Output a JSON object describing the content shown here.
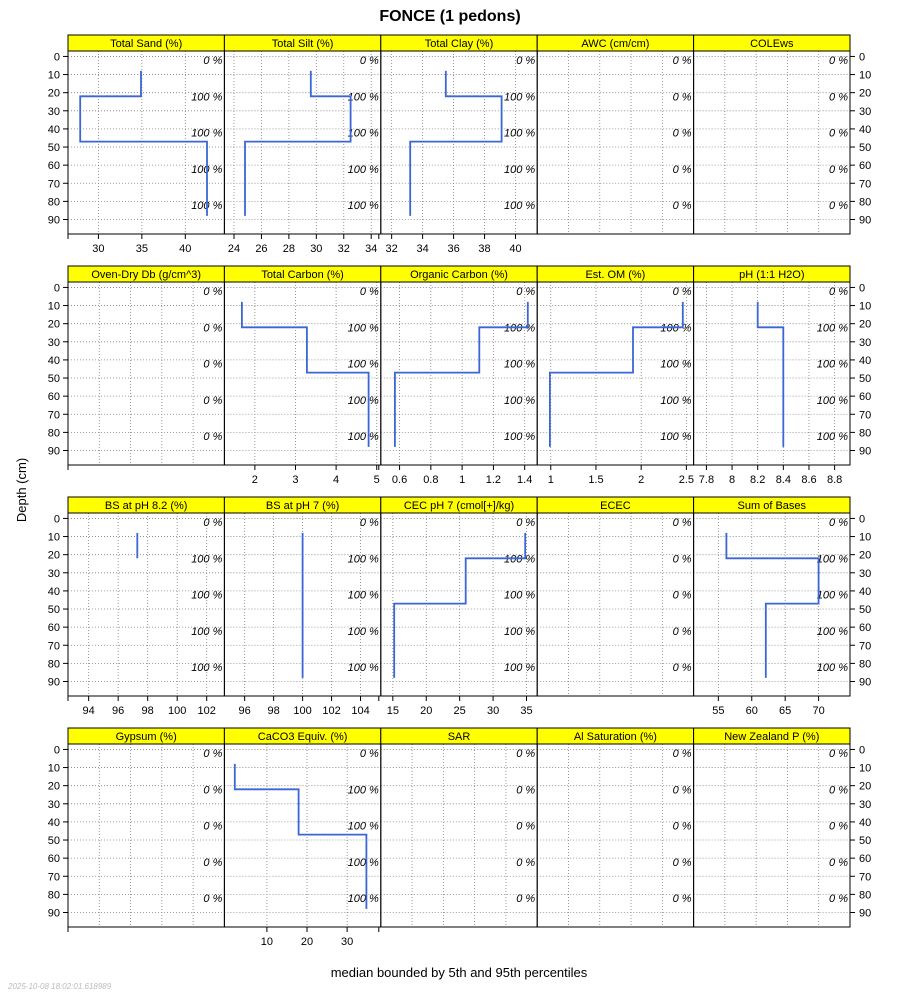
{
  "chart_data": {
    "type": "line",
    "title": "FONCE (1 pedons)",
    "ylabel": "Depth (cm)",
    "xlabel": "median bounded by 5th and 95th percentiles",
    "timestamp": "2025-10-08 18:02:01.618989",
    "y_ticks": [
      0,
      10,
      20,
      30,
      40,
      50,
      60,
      70,
      80,
      90
    ],
    "ylim": [
      -3,
      98
    ],
    "grid": true,
    "colors": {
      "strip": "#ffff00",
      "line": "#3a66d6",
      "grid": "#808080"
    },
    "pct_labels": [
      {
        "depth": 2,
        "text": "0 %"
      },
      {
        "depth": 22,
        "text": "100 %"
      },
      {
        "depth": 42,
        "text": "100 %"
      },
      {
        "depth": 62,
        "text": "100 %"
      },
      {
        "depth": 82,
        "text": "100 %"
      }
    ],
    "zero_pct_labels": [
      {
        "depth": 2,
        "text": "0 %"
      },
      {
        "depth": 22,
        "text": "0 %"
      },
      {
        "depth": 42,
        "text": "0 %"
      },
      {
        "depth": 62,
        "text": "0 %"
      },
      {
        "depth": 82,
        "text": "0 %"
      }
    ],
    "panels": [
      {
        "name": "Total Sand (%)",
        "xlim": [
          26.5,
          44.5
        ],
        "ticks": [
          30,
          35,
          40
        ],
        "has_data": true,
        "profile": [
          [
            34.9,
            8
          ],
          [
            34.9,
            22
          ],
          [
            27.9,
            22
          ],
          [
            27.9,
            47
          ],
          [
            42.5,
            47
          ],
          [
            42.5,
            88
          ]
        ]
      },
      {
        "name": "Total Silt (%)",
        "xlim": [
          23.3,
          34.7
        ],
        "ticks": [
          24,
          26,
          28,
          30,
          32,
          34
        ],
        "has_data": true,
        "profile": [
          [
            29.6,
            8
          ],
          [
            29.6,
            22
          ],
          [
            32.5,
            22
          ],
          [
            32.5,
            47
          ],
          [
            24.8,
            47
          ],
          [
            24.8,
            88
          ]
        ]
      },
      {
        "name": "Total Clay (%)",
        "xlim": [
          31.3,
          41.4
        ],
        "ticks": [
          32,
          34,
          36,
          38,
          40
        ],
        "has_data": true,
        "profile": [
          [
            35.5,
            8
          ],
          [
            35.5,
            22
          ],
          [
            39.1,
            22
          ],
          [
            39.1,
            47
          ],
          [
            33.2,
            47
          ],
          [
            33.2,
            88
          ]
        ]
      },
      {
        "name": "AWC (cm/cm)",
        "xlim": [
          0,
          1
        ],
        "ticks": [],
        "has_data": false,
        "profile": []
      },
      {
        "name": "COLEws",
        "xlim": [
          0,
          1
        ],
        "ticks": [],
        "has_data": false,
        "profile": []
      },
      {
        "name": "Oven-Dry Db (g/cm^3)",
        "xlim": [
          0,
          1
        ],
        "ticks": [],
        "has_data": false,
        "profile": []
      },
      {
        "name": "Total Carbon (%)",
        "xlim": [
          1.25,
          5.1
        ],
        "ticks": [
          2,
          3,
          4,
          5
        ],
        "has_data": true,
        "profile": [
          [
            1.68,
            8
          ],
          [
            1.68,
            22
          ],
          [
            3.28,
            22
          ],
          [
            3.28,
            47
          ],
          [
            4.8,
            47
          ],
          [
            4.8,
            88
          ]
        ]
      },
      {
        "name": "Organic Carbon (%)",
        "xlim": [
          0.48,
          1.48
        ],
        "ticks": [
          0.6,
          0.8,
          1.0,
          1.2,
          1.4
        ],
        "has_data": true,
        "profile": [
          [
            1.42,
            8
          ],
          [
            1.42,
            22
          ],
          [
            1.11,
            22
          ],
          [
            1.11,
            47
          ],
          [
            0.57,
            47
          ],
          [
            0.57,
            88
          ]
        ]
      },
      {
        "name": "Est. OM (%)",
        "xlim": [
          0.85,
          2.58
        ],
        "ticks": [
          1.0,
          1.5,
          2.0,
          2.5
        ],
        "has_data": true,
        "profile": [
          [
            2.46,
            8
          ],
          [
            2.46,
            22
          ],
          [
            1.91,
            22
          ],
          [
            1.91,
            47
          ],
          [
            0.99,
            47
          ],
          [
            0.99,
            88
          ]
        ]
      },
      {
        "name": "pH (1:1 H2O)",
        "xlim": [
          7.7,
          8.92
        ],
        "ticks": [
          7.8,
          8.0,
          8.2,
          8.4,
          8.6,
          8.8
        ],
        "has_data": true,
        "profile": [
          [
            8.2,
            8
          ],
          [
            8.2,
            22
          ],
          [
            8.4,
            22
          ],
          [
            8.4,
            88
          ]
        ]
      },
      {
        "name": "BS at pH 8.2 (%)",
        "xlim": [
          92.6,
          103.2
        ],
        "ticks": [
          94,
          96,
          98,
          100,
          102
        ],
        "has_data": true,
        "profile": [
          [
            97.3,
            8
          ],
          [
            97.3,
            22
          ]
        ]
      },
      {
        "name": "BS at pH 7 (%)",
        "xlim": [
          94.6,
          105.4
        ],
        "ticks": [
          96,
          98,
          100,
          102,
          104
        ],
        "has_data": true,
        "profile": [
          [
            100,
            8
          ],
          [
            100,
            88
          ]
        ]
      },
      {
        "name": "CEC pH 7 (cmol[+]/kg)",
        "xlim": [
          13.2,
          36.6
        ],
        "ticks": [
          15,
          20,
          25,
          30,
          35
        ],
        "has_data": true,
        "profile": [
          [
            34.8,
            8
          ],
          [
            34.8,
            22
          ],
          [
            25.9,
            22
          ],
          [
            25.9,
            47
          ],
          [
            15.2,
            47
          ],
          [
            15.2,
            88
          ]
        ]
      },
      {
        "name": "ECEC",
        "xlim": [
          0,
          1
        ],
        "ticks": [],
        "has_data": false,
        "profile": []
      },
      {
        "name": "Sum of Bases",
        "xlim": [
          51.3,
          74.7
        ],
        "ticks": [
          55,
          60,
          65,
          70
        ],
        "has_data": true,
        "profile": [
          [
            56.2,
            8
          ],
          [
            56.2,
            22
          ],
          [
            70.0,
            22
          ],
          [
            70.0,
            47
          ],
          [
            62.1,
            47
          ],
          [
            62.1,
            88
          ]
        ]
      },
      {
        "name": "Gypsum (%)",
        "xlim": [
          0,
          1
        ],
        "ticks": [],
        "has_data": false,
        "profile": []
      },
      {
        "name": "CaCO3 Equiv. (%)",
        "xlim": [
          -0.6,
          38.4
        ],
        "ticks": [
          10,
          20,
          30
        ],
        "has_data": true,
        "profile": [
          [
            2.0,
            8
          ],
          [
            2.0,
            22
          ],
          [
            17.9,
            22
          ],
          [
            17.9,
            47
          ],
          [
            34.8,
            47
          ],
          [
            34.8,
            88
          ]
        ]
      },
      {
        "name": "SAR",
        "xlim": [
          0,
          1
        ],
        "ticks": [],
        "has_data": false,
        "profile": []
      },
      {
        "name": "Al Saturation (%)",
        "xlim": [
          0,
          1
        ],
        "ticks": [],
        "has_data": false,
        "profile": []
      },
      {
        "name": "New Zealand P (%)",
        "xlim": [
          0,
          1
        ],
        "ticks": [],
        "has_data": false,
        "profile": []
      }
    ]
  }
}
